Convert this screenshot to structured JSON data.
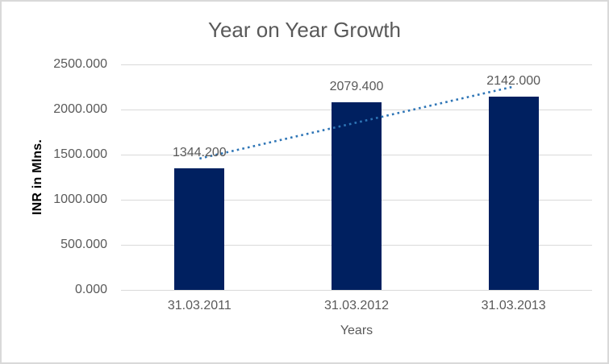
{
  "chart_data": {
    "type": "bar",
    "title": "Year on Year Growth",
    "xlabel": "Years",
    "ylabel": "INR in Mlns.",
    "categories": [
      "31.03.2011",
      "31.03.2012",
      "31.03.2013"
    ],
    "series": [
      {
        "name": "INR in Mlns.",
        "values": [
          1344.2,
          2079.4,
          2142.0
        ],
        "data_labels": [
          "1344.200",
          "2079.400",
          "2142.000"
        ]
      }
    ],
    "ylim": [
      0,
      2500
    ],
    "ytick_step": 500,
    "ytick_labels": [
      "0.000",
      "500.000",
      "1000.000",
      "1500.000",
      "2000.000",
      "2500.000"
    ],
    "grid": true,
    "legend": false,
    "trendline": {
      "type": "linear",
      "style": "dotted",
      "color": "#2E75B6"
    },
    "colors": {
      "bar": "#002060",
      "gridline": "#D9D9D9",
      "axis_text": "#595959",
      "title_text": "#595959",
      "ylabel_text": "#000000",
      "border": "#D9D9D9",
      "background": "#FFFFFF"
    }
  }
}
